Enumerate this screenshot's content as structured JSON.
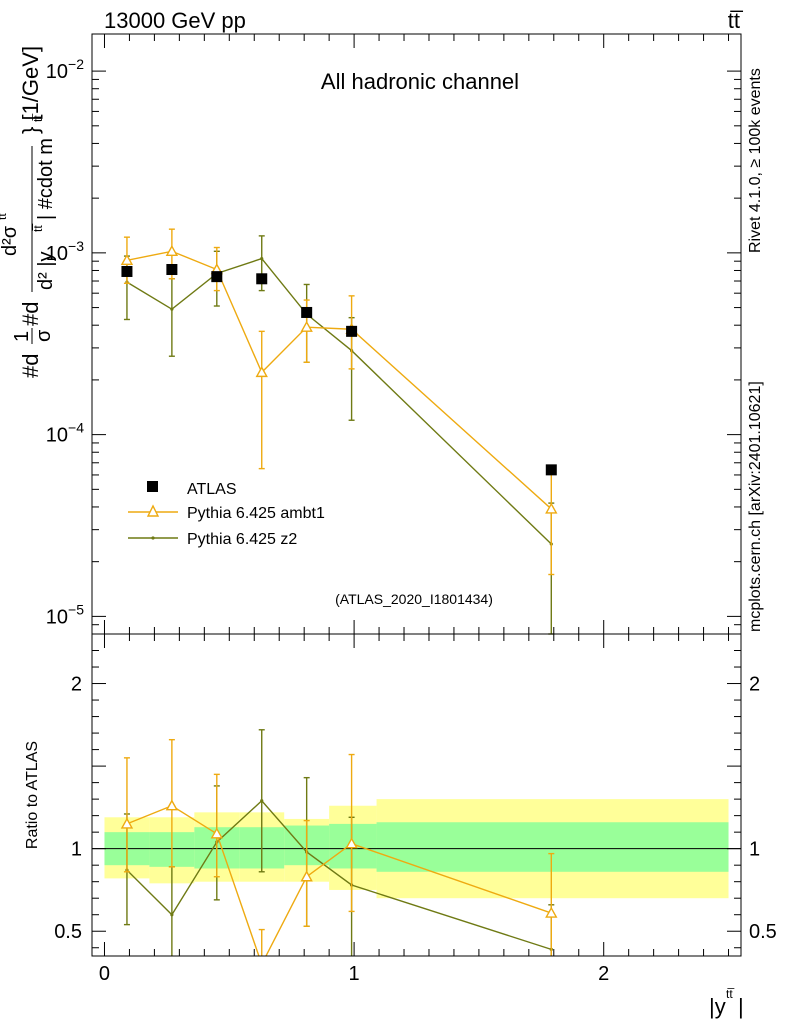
{
  "header": {
    "energy_label": "13000 GeV pp",
    "process_label": "tt̅"
  },
  "side_labels": {
    "rivet": "Rivet 4.1.0, ≥ 100k events",
    "mcplots": "mcplots.cern.ch [arXiv:2401.10621]"
  },
  "colors": {
    "atlas": "#000000",
    "ambt1": "#eeaa11",
    "z2": "#6f7a14",
    "band_inner": "#99ff99",
    "band_outer": "#ffff99",
    "watermark": "#999999"
  },
  "chart_data": [
    {
      "type": "scatter",
      "title": "All hadronic channel",
      "annotation": "(ATLAS_2020_I1801434)",
      "ylabel": "#d¹/σ#d d²σ^{tt̅} / d²|y^{tt̅}| #cdot m^{tt̅}} [1/GeV]",
      "ylabel_parts": [
        "#d",
        "1",
        "σ",
        "#d",
        "d²σ",
        "tt̅",
        "d² |y",
        "tt̅",
        "| #cdot m",
        "tt̅",
        "} [1/GeV]"
      ],
      "yscale": "log",
      "ylim": [
        8e-06,
        0.016
      ],
      "y_ticks": [
        1e-05,
        0.0001,
        0.001,
        0.01
      ],
      "y_tick_labels": [
        {
          "base": "10",
          "exp": "−5"
        },
        {
          "base": "10",
          "exp": "−4"
        },
        {
          "base": "10",
          "exp": "−3"
        },
        {
          "base": "10",
          "exp": "−2"
        }
      ],
      "xlim": [
        -0.05,
        2.55
      ],
      "legend_position": "lower-left",
      "series": [
        {
          "name": "ATLAS",
          "marker": "filled-square",
          "points": [
            {
              "x": 0.09,
              "y": 0.00079
            },
            {
              "x": 0.27,
              "y": 0.00081
            },
            {
              "x": 0.45,
              "y": 0.00074
            },
            {
              "x": 0.63,
              "y": 0.00072
            },
            {
              "x": 0.81,
              "y": 0.00047
            },
            {
              "x": 0.99,
              "y": 0.00037
            },
            {
              "x": 1.79,
              "y": 6.4e-05
            }
          ]
        },
        {
          "name": "Pythia 6.425 ambt1",
          "marker": "open-triangle",
          "points": [
            {
              "x": 0.09,
              "y": 0.00091,
              "lo": 0.00068,
              "hi": 0.00122
            },
            {
              "x": 0.27,
              "y": 0.00102,
              "lo": 0.00072,
              "hi": 0.00135
            },
            {
              "x": 0.45,
              "y": 0.00081,
              "lo": 0.00062,
              "hi": 0.00107
            },
            {
              "x": 0.63,
              "y": 0.00022,
              "lo": 6.5e-05,
              "hi": 0.00037
            },
            {
              "x": 0.81,
              "y": 0.00039,
              "lo": 0.00025,
              "hi": 0.00055
            },
            {
              "x": 0.99,
              "y": 0.00038,
              "lo": 0.00023,
              "hi": 0.00058
            },
            {
              "x": 1.79,
              "y": 3.9e-05,
              "lo": 1.7e-05,
              "hi": 6.2e-05
            }
          ]
        },
        {
          "name": "Pythia 6.425 z2",
          "marker": "small-dot",
          "points": [
            {
              "x": 0.09,
              "y": 0.00069,
              "lo": 0.00043,
              "hi": 0.00096
            },
            {
              "x": 0.27,
              "y": 0.00049,
              "lo": 0.00027,
              "hi": 0.00072
            },
            {
              "x": 0.45,
              "y": 0.00077,
              "lo": 0.00051,
              "hi": 0.00102
            },
            {
              "x": 0.63,
              "y": 0.00093,
              "lo": 0.00062,
              "hi": 0.00124
            },
            {
              "x": 0.81,
              "y": 0.00046,
              "lo": 0.00025,
              "hi": 0.00067
            },
            {
              "x": 0.99,
              "y": 0.00029,
              "lo": 0.00012,
              "hi": 0.00044
            },
            {
              "x": 1.79,
              "y": 2.5e-05,
              "lo": 8e-06,
              "hi": 4.2e-05
            }
          ]
        }
      ]
    },
    {
      "type": "line",
      "title": "",
      "xlabel": "|y^{tt̅}|",
      "xlabel_parts": [
        "|y",
        "tt̅",
        "|"
      ],
      "ylabel": "Ratio to ATLAS",
      "ylim": [
        0.35,
        2.3
      ],
      "y_ticks": [
        0.5,
        1,
        2
      ],
      "y_tick_labels": [
        "0.5",
        "1",
        "2"
      ],
      "xlim": [
        -0.05,
        2.55
      ],
      "x_ticks": [
        0,
        1,
        2
      ],
      "x_tick_labels": [
        "0",
        "1",
        "2"
      ],
      "reference_line": 1,
      "bins": [
        {
          "x0": 0.0,
          "x1": 0.18,
          "inner": [
            0.9,
            1.1
          ],
          "outer": [
            0.82,
            1.19
          ]
        },
        {
          "x0": 0.18,
          "x1": 0.36,
          "inner": [
            0.89,
            1.1
          ],
          "outer": [
            0.79,
            1.19
          ]
        },
        {
          "x0": 0.36,
          "x1": 0.54,
          "inner": [
            0.88,
            1.13
          ],
          "outer": [
            0.8,
            1.22
          ]
        },
        {
          "x0": 0.54,
          "x1": 0.72,
          "inner": [
            0.88,
            1.13
          ],
          "outer": [
            0.8,
            1.22
          ]
        },
        {
          "x0": 0.72,
          "x1": 0.9,
          "inner": [
            0.9,
            1.14
          ],
          "outer": [
            0.8,
            1.18
          ]
        },
        {
          "x0": 0.9,
          "x1": 1.09,
          "inner": [
            0.88,
            1.15
          ],
          "outer": [
            0.75,
            1.26
          ]
        },
        {
          "x0": 1.09,
          "x1": 2.5,
          "inner": [
            0.86,
            1.16
          ],
          "outer": [
            0.7,
            1.3
          ]
        }
      ],
      "series": [
        {
          "name": "Pythia 6.425 ambt1",
          "points": [
            {
              "x": 0.09,
              "y": 1.15,
              "lo": 0.86,
              "hi": 1.55
            },
            {
              "x": 0.27,
              "y": 1.26,
              "lo": 0.89,
              "hi": 1.66
            },
            {
              "x": 0.45,
              "y": 1.09,
              "lo": 0.83,
              "hi": 1.45
            },
            {
              "x": 0.63,
              "y": 0.3,
              "lo": 0.09,
              "hi": 0.51
            },
            {
              "x": 0.81,
              "y": 0.83,
              "lo": 0.53,
              "hi": 1.17
            },
            {
              "x": 0.99,
              "y": 1.03,
              "lo": 0.62,
              "hi": 1.57
            },
            {
              "x": 1.79,
              "y": 0.61,
              "lo": 0.27,
              "hi": 0.97
            }
          ]
        },
        {
          "name": "Pythia 6.425 z2",
          "points": [
            {
              "x": 0.09,
              "y": 0.87,
              "lo": 0.54,
              "hi": 1.21
            },
            {
              "x": 0.27,
              "y": 0.6,
              "lo": 0.33,
              "hi": 0.89
            },
            {
              "x": 0.45,
              "y": 1.04,
              "lo": 0.69,
              "hi": 1.38
            },
            {
              "x": 0.63,
              "y": 1.29,
              "lo": 0.86,
              "hi": 1.72
            },
            {
              "x": 0.81,
              "y": 0.98,
              "lo": 0.53,
              "hi": 1.43
            },
            {
              "x": 0.99,
              "y": 0.78,
              "lo": 0.32,
              "hi": 1.19
            },
            {
              "x": 1.79,
              "y": 0.39,
              "lo": 0.13,
              "hi": 0.66
            }
          ]
        }
      ]
    }
  ]
}
